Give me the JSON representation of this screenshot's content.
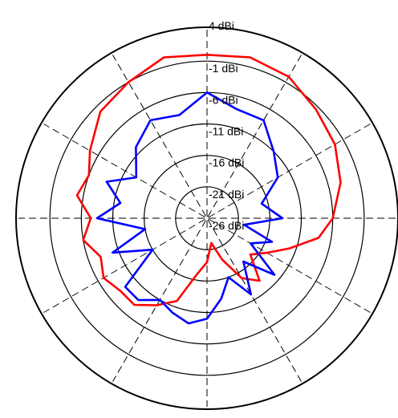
{
  "chart_data": {
    "type": "polar",
    "title": "",
    "radial_unit": "dBi",
    "rlim": [
      -26,
      4
    ],
    "radial_ticks": [
      4,
      -1,
      -6,
      -11,
      -16,
      -21,
      -26
    ],
    "radial_tick_labels": [
      "4 dBi",
      "-1 dBi",
      "-6 dBi",
      "-11 dBi",
      "-16 dBi",
      "-21 dBi",
      "-26 dBi"
    ],
    "angle_grid_step_deg": 30,
    "grid": true,
    "legend": "none",
    "theta_convention": "degrees clockwise from top",
    "series": [
      {
        "color": "#ff0000",
        "points": [
          [
            0,
            0
          ],
          [
            15,
            0.5
          ],
          [
            30,
            0
          ],
          [
            45,
            -1.5
          ],
          [
            60,
            -2.5
          ],
          [
            75,
            -4
          ],
          [
            90,
            -6
          ],
          [
            100,
            -8
          ],
          [
            110,
            -12
          ],
          [
            120,
            -15
          ],
          [
            130,
            -17
          ],
          [
            140,
            -13
          ],
          [
            150,
            -15
          ],
          [
            160,
            -19
          ],
          [
            170,
            -22
          ],
          [
            180,
            -19
          ],
          [
            190,
            -17
          ],
          [
            200,
            -12
          ],
          [
            210,
            -10
          ],
          [
            220,
            -8
          ],
          [
            230,
            -8
          ],
          [
            240,
            -7
          ],
          [
            250,
            -8
          ],
          [
            260,
            -6
          ],
          [
            270,
            -7.5
          ],
          [
            280,
            -5
          ],
          [
            290,
            -6
          ],
          [
            300,
            -4.5
          ],
          [
            315,
            -2
          ],
          [
            330,
            -1
          ],
          [
            345,
            0.5
          ],
          [
            360,
            0
          ]
        ]
      },
      {
        "color": "#0000ff",
        "points": [
          [
            0,
            -6
          ],
          [
            15,
            -8
          ],
          [
            30,
            -8
          ],
          [
            45,
            -11
          ],
          [
            60,
            -13
          ],
          [
            75,
            -17
          ],
          [
            90,
            -14
          ],
          [
            100,
            -20
          ],
          [
            110,
            -15
          ],
          [
            120,
            -18
          ],
          [
            130,
            -12
          ],
          [
            140,
            -17
          ],
          [
            150,
            -12
          ],
          [
            160,
            -16
          ],
          [
            170,
            -13
          ],
          [
            180,
            -10
          ],
          [
            190,
            -9
          ],
          [
            200,
            -10
          ],
          [
            210,
            -11
          ],
          [
            220,
            -9
          ],
          [
            230,
            -9
          ],
          [
            240,
            -16
          ],
          [
            250,
            -10
          ],
          [
            260,
            -16
          ],
          [
            270,
            -8.5
          ],
          [
            280,
            -12
          ],
          [
            290,
            -9
          ],
          [
            300,
            -13
          ],
          [
            315,
            -10
          ],
          [
            330,
            -8
          ],
          [
            345,
            -9
          ],
          [
            360,
            -6
          ]
        ]
      }
    ]
  }
}
